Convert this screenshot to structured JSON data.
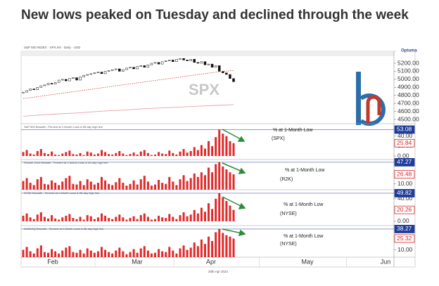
{
  "title": "New lows peaked on Tuesday and declined through the week",
  "date_label": "20th Apr 2024",
  "brand": "Optuma",
  "chart_data": [
    {
      "type": "candlestick",
      "header": "S&P 500 INDEX · SPX.INI · Daily · USD",
      "watermark": "SPX",
      "open": [
        4830,
        4840,
        4860,
        4880,
        4870,
        4900,
        4920,
        4930,
        4950,
        4940,
        4960,
        4990,
        5000,
        4980,
        5010,
        5020,
        4990,
        5030,
        5050,
        5060,
        5070,
        5080,
        5090,
        5070,
        5100,
        5110,
        5120,
        5130,
        5100,
        5120,
        5140,
        5150,
        5130,
        5160,
        5170,
        5150,
        5180,
        5200,
        5210,
        5190,
        5220,
        5230,
        5240,
        5220,
        5250,
        5260,
        5240,
        5230,
        5250,
        5210,
        5200,
        5220,
        5180,
        5190,
        5150,
        5170,
        5100,
        5080,
        5060,
        5010
      ],
      "close": [
        4840,
        4860,
        4880,
        4870,
        4900,
        4920,
        4930,
        4950,
        4940,
        4960,
        4990,
        5000,
        4980,
        5010,
        5020,
        4990,
        5030,
        5050,
        5060,
        5070,
        5080,
        5090,
        5070,
        5100,
        5110,
        5120,
        5130,
        5100,
        5120,
        5140,
        5150,
        5130,
        5160,
        5170,
        5150,
        5180,
        5200,
        5210,
        5190,
        5220,
        5230,
        5240,
        5220,
        5250,
        5260,
        5240,
        5230,
        5250,
        5210,
        5200,
        5220,
        5180,
        5190,
        5150,
        5170,
        5100,
        5080,
        5060,
        5010,
        4970
      ],
      "up_color": "#ffffff",
      "down_color": "#111111",
      "lines": [
        {
          "color": "#d9534f",
          "dashed": true,
          "values": [
            4760,
            4790,
            4820,
            4850,
            4880,
            4910,
            4940,
            4970,
            5000,
            5030,
            5060,
            5090,
            5110
          ]
        },
        {
          "color": "#e8a0a8",
          "dashed": false,
          "values": [
            4540,
            4555,
            4570,
            4580,
            4595,
            4610,
            4620,
            4635,
            4645,
            4655,
            4665,
            4675,
            4685
          ]
        }
      ],
      "ylim": [
        4447.5,
        5287.5
      ],
      "yticks": [
        {
          "value": 5200,
          "label": "5200.00"
        },
        {
          "value": 5100,
          "label": "5100.00"
        },
        {
          "value": 5000,
          "label": "5000.00"
        },
        {
          "value": 4900,
          "label": "4900.00"
        },
        {
          "value": 4800,
          "label": "4800.00"
        },
        {
          "value": 4700,
          "label": "4700.00"
        },
        {
          "value": 4600,
          "label": "4600.00"
        },
        {
          "value": 4500,
          "label": "4500.00"
        }
      ],
      "months": [
        "Feb",
        "Mar",
        "Apr",
        "May",
        "Jun"
      ]
    },
    {
      "type": "bar",
      "header": "S&P 500 Breadth - Percent at 1-Month Lows & 65-day high line",
      "label": "% at 1-Month Low",
      "index": "(SPX)",
      "color": "#e02a2a",
      "values": [
        8,
        12,
        5,
        3,
        10,
        14,
        6,
        4,
        9,
        3,
        2,
        5,
        8,
        11,
        4,
        3,
        6,
        2,
        9,
        7,
        3,
        5,
        12,
        8,
        4,
        3,
        6,
        10,
        5,
        2,
        4,
        7,
        3,
        9,
        12,
        6,
        2,
        3,
        8,
        5,
        4,
        11,
        6,
        3,
        9,
        14,
        7,
        10,
        18,
        12,
        22,
        15,
        30,
        20,
        38,
        53.08,
        45,
        40,
        30,
        25.84
      ],
      "ylim": [
        -7,
        65
      ],
      "yticks": [
        {
          "value": 40,
          "label": "40.00"
        },
        {
          "value": 20,
          "label": "20.00"
        },
        {
          "value": 0,
          "label": "0.00"
        }
      ]
    },
    {
      "type": "bar",
      "header": "Russell 2000 Breadth - Percent at 1-Month Lows & 65-day high line",
      "label": "% at 1-Month Low",
      "index": "(R2K)",
      "color": "#e02a2a",
      "values": [
        15,
        20,
        12,
        8,
        18,
        22,
        10,
        9,
        16,
        12,
        8,
        14,
        20,
        24,
        10,
        9,
        15,
        8,
        18,
        14,
        9,
        12,
        22,
        16,
        10,
        8,
        13,
        20,
        12,
        7,
        10,
        16,
        9,
        18,
        24,
        14,
        7,
        9,
        17,
        12,
        10,
        22,
        14,
        8,
        18,
        25,
        15,
        20,
        28,
        22,
        30,
        25,
        38,
        30,
        44,
        47.27,
        40,
        35,
        30,
        26.48
      ],
      "ylim": [
        0,
        52
      ],
      "yticks": [
        {
          "value": 10,
          "label": "10.00"
        }
      ]
    },
    {
      "type": "bar",
      "header": "NYSE Breadth - Percent at 1-Month Lows & 65-day high line",
      "label": "% at 1-Month Low",
      "index": "(NYSE)",
      "color": "#e02a2a",
      "values": [
        10,
        14,
        7,
        4,
        12,
        16,
        8,
        5,
        11,
        5,
        3,
        7,
        10,
        13,
        6,
        4,
        8,
        3,
        11,
        9,
        4,
        7,
        14,
        10,
        6,
        4,
        8,
        12,
        7,
        3,
        6,
        9,
        4,
        11,
        14,
        8,
        3,
        4,
        10,
        7,
        6,
        13,
        8,
        4,
        11,
        16,
        9,
        12,
        20,
        14,
        24,
        17,
        32,
        22,
        40,
        49.82,
        42,
        36,
        28,
        20.26
      ],
      "ylim": [
        -7.5,
        56
      ],
      "yticks": [
        {
          "value": 40,
          "label": "40.00"
        },
        {
          "value": 0,
          "label": "0.00"
        }
      ]
    },
    {
      "type": "bar",
      "header": "NASDAQ Breadth - Percent at 1-Month Lows & 65-day high line",
      "label": "% at 1-Month Low",
      "index": "(NYSE)",
      "color": "#e02a2a",
      "values": [
        10,
        14,
        8,
        5,
        12,
        16,
        7,
        6,
        11,
        8,
        5,
        9,
        13,
        15,
        7,
        6,
        10,
        5,
        12,
        9,
        6,
        8,
        14,
        10,
        7,
        5,
        9,
        13,
        8,
        4,
        7,
        11,
        6,
        12,
        15,
        9,
        5,
        6,
        11,
        8,
        7,
        14,
        9,
        5,
        12,
        16,
        10,
        13,
        20,
        15,
        24,
        18,
        28,
        22,
        34,
        38.27,
        33,
        30,
        28,
        25.32
      ],
      "ylim": [
        0,
        43
      ],
      "yticks": [
        {
          "value": 10,
          "label": "10.00"
        }
      ]
    }
  ]
}
